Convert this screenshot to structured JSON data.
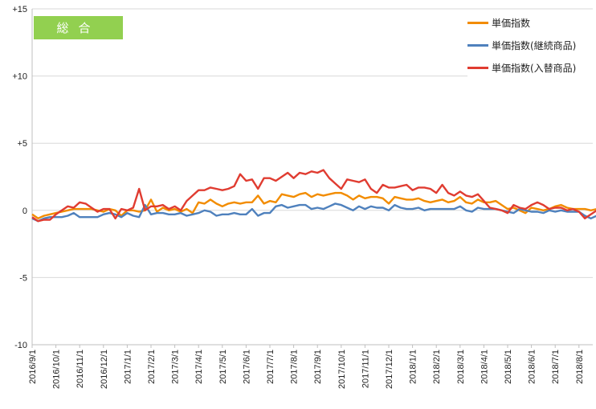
{
  "badge": {
    "label": "総合",
    "color": "#92d050"
  },
  "chart_data": {
    "type": "line",
    "y_ticks": [
      {
        "value": 15,
        "label": "+15"
      },
      {
        "value": 10,
        "label": "+10"
      },
      {
        "value": 5,
        "label": "+5"
      },
      {
        "value": 0,
        "label": "0"
      },
      {
        "value": -5,
        "label": "-5"
      },
      {
        "value": -10,
        "label": "-10"
      }
    ],
    "ylim": [
      -10,
      15
    ],
    "grid": true,
    "legend_position": "top-right",
    "x_labels": [
      "2016/9/1",
      "2016/10/1",
      "2016/11/1",
      "2016/12/1",
      "2017/1/1",
      "2017/2/1",
      "2017/3/1",
      "2017/4/1",
      "2017/5/1",
      "2017/6/1",
      "2017/7/1",
      "2017/8/1",
      "2017/9/1",
      "2017/10/1",
      "2017/11/1",
      "2017/12/1",
      "2018/1/1",
      "2018/2/1",
      "2018/3/1",
      "2018/4/1",
      "2018/5/1",
      "2018/6/1",
      "2018/7/1",
      "2018/8/1"
    ],
    "points_per_month": 4,
    "series": [
      {
        "name": "単価指数",
        "color": "#f28c00",
        "values": [
          -0.3,
          -0.6,
          -0.4,
          -0.3,
          -0.2,
          -0.1,
          0.0,
          0.1,
          0.1,
          0.1,
          0.1,
          0.0,
          -0.1,
          0.1,
          0.0,
          -0.4,
          0.0,
          0.0,
          -0.1,
          0.0,
          0.8,
          -0.1,
          0.2,
          0.0,
          0.1,
          -0.1,
          0.1,
          -0.2,
          0.6,
          0.5,
          0.8,
          0.5,
          0.3,
          0.5,
          0.6,
          0.5,
          0.6,
          0.6,
          1.1,
          0.5,
          0.7,
          0.6,
          1.2,
          1.1,
          1.0,
          1.2,
          1.3,
          1.0,
          1.2,
          1.1,
          1.2,
          1.3,
          1.3,
          1.1,
          0.8,
          1.1,
          0.9,
          1.0,
          1.0,
          0.9,
          0.5,
          1.0,
          0.9,
          0.8,
          0.8,
          0.9,
          0.7,
          0.6,
          0.7,
          0.8,
          0.6,
          0.7,
          1.0,
          0.6,
          0.5,
          0.8,
          0.6,
          0.6,
          0.7,
          0.4,
          0.1,
          0.2,
          0.0,
          -0.2,
          0.2,
          0.1,
          0.0,
          0.1,
          0.3,
          0.4,
          0.2,
          0.1,
          0.1,
          0.1,
          0.0,
          0.1,
          0.1,
          -0.5,
          -0.4,
          -0.3,
          -0.1,
          -0.6,
          -0.2,
          -0.3,
          -0.2,
          -0.3,
          -0.3,
          -0.3,
          -0.2,
          -0.3,
          0.2,
          0.0
        ]
      },
      {
        "name": "単価指数(継続商品)",
        "color": "#4f81bd",
        "values": [
          -0.6,
          -0.8,
          -0.6,
          -0.5,
          -0.5,
          -0.5,
          -0.4,
          -0.2,
          -0.5,
          -0.5,
          -0.5,
          -0.5,
          -0.3,
          -0.2,
          -0.3,
          -0.5,
          -0.2,
          -0.4,
          -0.5,
          0.4,
          -0.3,
          -0.2,
          -0.2,
          -0.3,
          -0.3,
          -0.2,
          -0.4,
          -0.3,
          -0.2,
          0.0,
          -0.1,
          -0.4,
          -0.3,
          -0.3,
          -0.2,
          -0.3,
          -0.3,
          0.1,
          -0.4,
          -0.2,
          -0.2,
          0.3,
          0.4,
          0.2,
          0.3,
          0.4,
          0.4,
          0.1,
          0.2,
          0.1,
          0.3,
          0.5,
          0.4,
          0.2,
          0.0,
          0.3,
          0.1,
          0.3,
          0.2,
          0.2,
          0.0,
          0.4,
          0.2,
          0.1,
          0.1,
          0.2,
          0.0,
          0.1,
          0.1,
          0.1,
          0.1,
          0.1,
          0.3,
          0.0,
          -0.1,
          0.2,
          0.1,
          0.1,
          0.1,
          0.0,
          -0.1,
          -0.2,
          0.1,
          0.0,
          -0.1,
          -0.1,
          -0.2,
          0.0,
          -0.1,
          0.0,
          -0.1,
          -0.1,
          -0.1,
          -0.4,
          -0.6,
          -0.4,
          -0.4,
          -1.0,
          -0.3,
          -0.5,
          -0.6,
          -0.6,
          -0.7,
          -0.6,
          -0.5,
          -0.4,
          -0.5,
          -0.5,
          -0.2,
          -0.5
        ]
      },
      {
        "name": "単価指数(入替商品)",
        "color": "#e03c31",
        "values": [
          -0.5,
          -0.8,
          -0.7,
          -0.7,
          -0.3,
          0.0,
          0.3,
          0.2,
          0.6,
          0.5,
          0.2,
          -0.1,
          0.1,
          0.1,
          -0.6,
          0.1,
          0.0,
          0.2,
          1.6,
          0.0,
          0.3,
          0.3,
          0.4,
          0.1,
          0.3,
          0.0,
          0.7,
          1.1,
          1.5,
          1.5,
          1.7,
          1.6,
          1.5,
          1.6,
          1.8,
          2.7,
          2.2,
          2.3,
          1.6,
          2.4,
          2.4,
          2.2,
          2.5,
          2.8,
          2.4,
          2.8,
          2.7,
          2.9,
          2.8,
          3.0,
          2.4,
          2.0,
          1.6,
          2.3,
          2.2,
          2.1,
          2.3,
          1.6,
          1.3,
          1.9,
          1.7,
          1.7,
          1.8,
          1.9,
          1.5,
          1.7,
          1.7,
          1.6,
          1.3,
          1.9,
          1.3,
          1.1,
          1.4,
          1.1,
          1.0,
          1.2,
          0.7,
          0.2,
          0.1,
          0.0,
          -0.2,
          0.4,
          0.2,
          0.1,
          0.4,
          0.6,
          0.4,
          0.1,
          0.2,
          0.2,
          0.0,
          0.1,
          -0.1,
          -0.6,
          -0.3,
          0.0,
          -0.6,
          0.2,
          0.4,
          0.7,
          0.8,
          1.0,
          0.7,
          1.6,
          1.3
        ]
      }
    ]
  }
}
